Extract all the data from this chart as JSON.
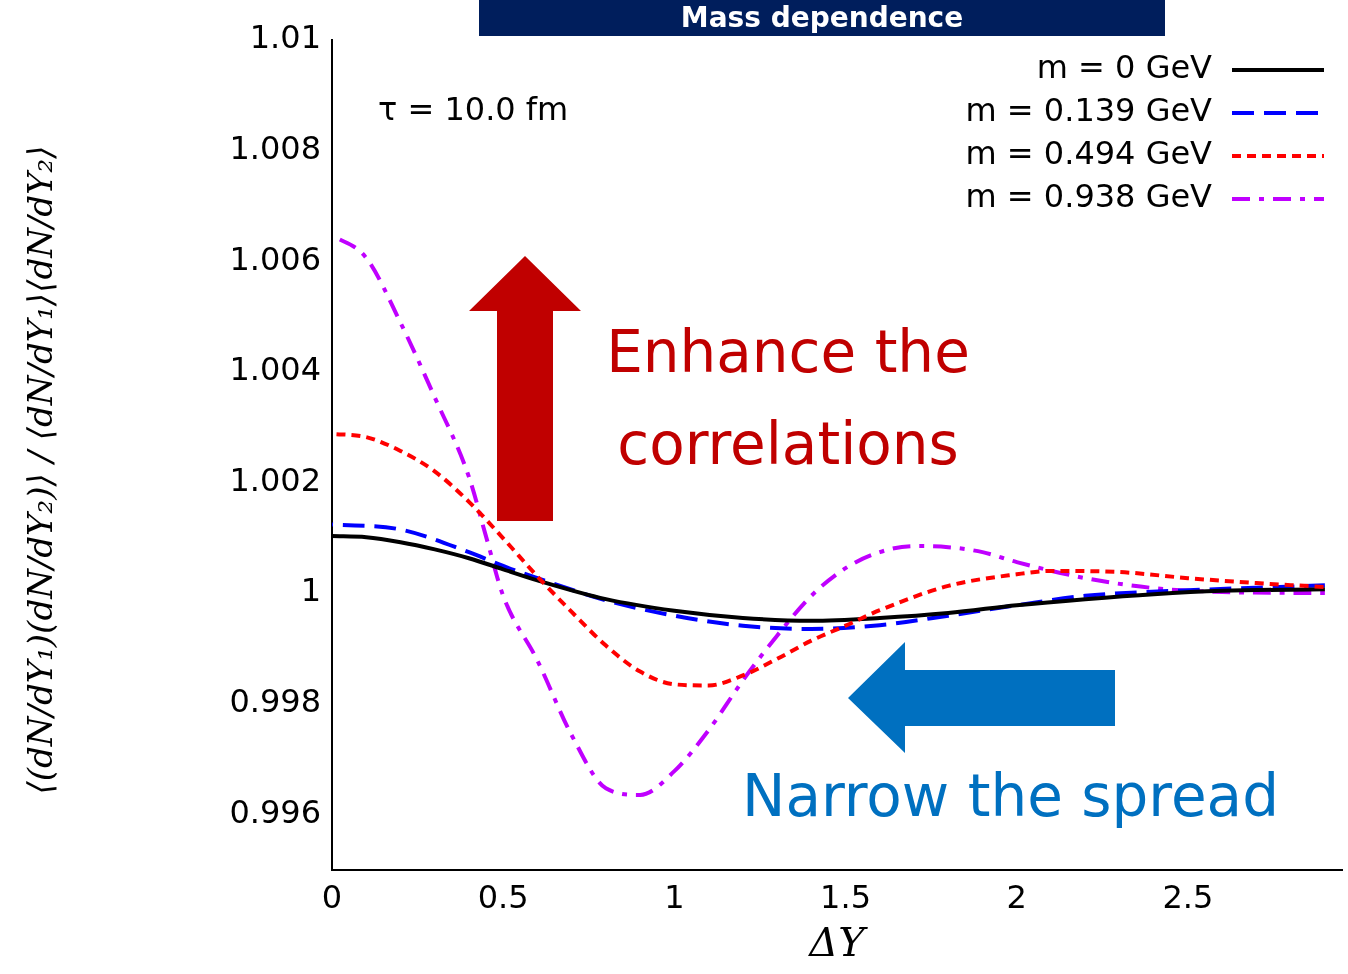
{
  "chart_data": {
    "type": "line",
    "title": "Mass dependence",
    "xlabel": "ΔY",
    "ylabel": "⟨(dN/dY₁)(dN/dY₂)⟩ / ⟨dN/dY₁⟩⟨dN/dY₂⟩",
    "xlim": [
      0,
      2.95
    ],
    "xticks": [
      0,
      0.5,
      1,
      1.5,
      2,
      2.5
    ],
    "ylim": [
      0.995,
      1.01
    ],
    "yticks": [
      0.996,
      0.998,
      1,
      1.002,
      1.004,
      1.006,
      1.008,
      1.01
    ],
    "grid": false,
    "legend": "top right",
    "marker": "none",
    "annotations": [
      "τ = 10.0 fm",
      "Enhance the correlations",
      "Narrow the spread"
    ],
    "series": [
      {
        "name": "m = 0 GeV",
        "color": "#000000",
        "line_style": "solid",
        "x": [
          0,
          0.1,
          0.2,
          0.3,
          0.4,
          0.5,
          0.6,
          0.8,
          1.0,
          1.2,
          1.4,
          1.6,
          1.8,
          2.0,
          2.2,
          2.4,
          2.6,
          2.9
        ],
        "values": [
          1.00103,
          1.00101,
          1.00092,
          1.00079,
          1.00063,
          1.00043,
          1.00023,
          0.99989,
          0.99968,
          0.99955,
          0.9995,
          0.99955,
          0.99964,
          0.99978,
          0.99989,
          0.99998,
          1.00004,
          1.00007
        ]
      },
      {
        "name": "m = 0.139 GeV",
        "color": "#0000ff",
        "line_style": "dashed",
        "x": [
          0,
          0.2,
          0.4,
          0.5,
          0.6,
          0.8,
          1.0,
          1.2,
          1.4,
          1.6,
          1.8,
          2.0,
          2.2,
          2.5,
          2.9
        ],
        "values": [
          1.00124,
          1.00115,
          1.00074,
          1.00049,
          1.00027,
          0.99987,
          0.99959,
          0.99941,
          0.99935,
          0.99942,
          0.99959,
          0.99978,
          0.99995,
          1.00005,
          1.00014
        ]
      },
      {
        "name": "m = 0.494 GeV",
        "color": "#ff0000",
        "line_style": "dotted",
        "x": [
          0,
          0.1,
          0.2,
          0.3,
          0.4,
          0.5,
          0.6,
          0.7,
          0.8,
          0.9,
          1.0,
          1.1,
          1.2,
          1.3,
          1.4,
          1.5,
          1.6,
          1.8,
          2.0,
          2.1,
          2.3,
          2.5,
          2.7,
          2.9
        ],
        "values": [
          1.00288,
          1.00282,
          1.00257,
          1.0022,
          1.00165,
          1.00099,
          1.0003,
          0.99966,
          0.99905,
          0.99858,
          0.99835,
          0.99833,
          0.99851,
          0.99881,
          0.99914,
          0.99941,
          0.99969,
          1.00013,
          1.00034,
          1.0004,
          1.00038,
          1.00027,
          1.00018,
          1.00011
        ]
      },
      {
        "name": "m = 0.938 GeV",
        "color": "#c000ff",
        "line_style": "dashdot",
        "x": [
          0,
          0.1,
          0.2,
          0.3,
          0.4,
          0.45,
          0.5,
          0.6,
          0.7,
          0.8,
          0.9,
          1.0,
          1.1,
          1.2,
          1.3,
          1.4,
          1.5,
          1.6,
          1.7,
          1.8,
          1.9,
          2.0,
          2.2,
          2.4,
          2.6,
          2.9
        ],
        "values": [
          1.00647,
          1.00606,
          1.00489,
          1.00354,
          1.0021,
          1.00102,
          0.99995,
          0.99878,
          0.99743,
          0.99647,
          0.99635,
          0.99678,
          0.99752,
          0.99842,
          0.99923,
          0.99995,
          1.00045,
          1.00074,
          1.00085,
          1.00083,
          1.00074,
          1.00056,
          1.00027,
          1.00009,
          1.00002,
          1
        ]
      }
    ]
  }
}
